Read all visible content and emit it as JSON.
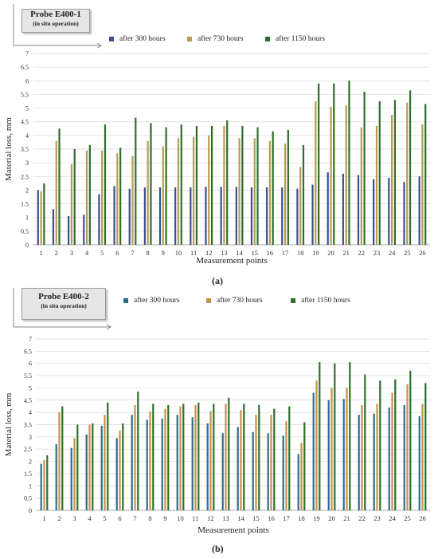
{
  "chart_data": [
    {
      "type": "bar",
      "panel_label": "(a)",
      "probe_title": "Probe E400-1",
      "probe_subtitle": "(in situ operation)",
      "xlabel": "Measurement points",
      "ylabel": "Material loss, mm",
      "ylim": [
        0,
        7
      ],
      "yticks": [
        "0",
        "0.5",
        "1",
        "1.5",
        "2",
        "2.5",
        "3",
        "3.5",
        "4",
        "4.5",
        "5",
        "5.5",
        "6",
        "6.5",
        "7"
      ],
      "categories": [
        "1",
        "2",
        "3",
        "4",
        "5",
        "6",
        "7",
        "8",
        "9",
        "10",
        "11",
        "12",
        "13",
        "14",
        "15",
        "16",
        "17",
        "18",
        "19",
        "20",
        "21",
        "22",
        "23",
        "24",
        "25",
        "26"
      ],
      "legend_position": "top",
      "series": [
        {
          "name": "after 300 hours",
          "color": "#3a4f8f",
          "values": [
            2.0,
            1.3,
            1.05,
            1.1,
            1.85,
            2.15,
            2.05,
            2.1,
            2.1,
            2.1,
            2.1,
            2.12,
            2.12,
            2.12,
            2.1,
            2.1,
            2.1,
            2.05,
            2.2,
            2.65,
            2.6,
            2.55,
            2.4,
            2.45,
            2.3,
            2.5
          ]
        },
        {
          "name": "after 730 hours",
          "color": "#b89a55",
          "values": [
            1.95,
            3.8,
            2.95,
            3.45,
            3.45,
            3.35,
            3.25,
            3.8,
            3.6,
            3.9,
            3.95,
            4.0,
            4.35,
            3.9,
            3.9,
            3.8,
            3.7,
            2.85,
            5.25,
            5.05,
            5.1,
            4.3,
            4.35,
            4.75,
            5.2,
            4.4
          ]
        },
        {
          "name": "after 1150 hours",
          "color": "#2e6e2a",
          "values": [
            2.25,
            4.25,
            3.5,
            3.65,
            4.4,
            3.55,
            4.65,
            4.45,
            4.3,
            4.4,
            4.35,
            4.35,
            4.55,
            4.35,
            4.3,
            4.15,
            4.2,
            3.65,
            5.9,
            5.9,
            6.0,
            5.6,
            5.25,
            5.3,
            5.65,
            5.15
          ]
        }
      ]
    },
    {
      "type": "bar",
      "panel_label": "(b)",
      "probe_title": "Probe E400-2",
      "probe_subtitle": "(in situ operation)",
      "xlabel": "Measurement points",
      "ylabel": "Material loss, mm",
      "ylim": [
        0,
        7
      ],
      "yticks": [
        "0",
        "0.5",
        "1",
        "1.5",
        "2",
        "2.5",
        "3",
        "3.5",
        "4",
        "4.5",
        "5",
        "5.5",
        "6",
        "6.5",
        "7"
      ],
      "categories": [
        "1",
        "2",
        "3",
        "4",
        "5",
        "6",
        "7",
        "8",
        "9",
        "10",
        "11",
        "12",
        "13",
        "14",
        "15",
        "16",
        "17",
        "18",
        "19",
        "20",
        "21",
        "22",
        "23",
        "24",
        "25",
        "26"
      ],
      "legend_position": "top",
      "series": [
        {
          "name": "after 300 hours",
          "color": "#2e6a8e",
          "values": [
            1.9,
            2.7,
            2.55,
            3.1,
            3.45,
            2.95,
            3.9,
            3.7,
            3.75,
            3.9,
            3.8,
            3.55,
            3.15,
            3.4,
            3.2,
            3.15,
            3.05,
            2.3,
            4.8,
            4.5,
            4.55,
            3.9,
            3.95,
            4.2,
            4.3,
            3.85
          ]
        },
        {
          "name": "after 730 hours",
          "color": "#c8914a",
          "values": [
            2.05,
            4.0,
            2.95,
            3.5,
            3.9,
            3.25,
            4.3,
            4.05,
            4.15,
            4.25,
            4.3,
            4.05,
            4.35,
            4.1,
            3.9,
            3.9,
            3.65,
            2.75,
            5.3,
            5.0,
            5.0,
            4.3,
            4.35,
            4.8,
            5.15,
            4.35
          ]
        },
        {
          "name": "after 1150 hours",
          "color": "#2f6f2b",
          "values": [
            2.25,
            4.25,
            3.5,
            3.55,
            4.4,
            3.55,
            4.85,
            4.35,
            4.3,
            4.35,
            4.4,
            4.35,
            4.6,
            4.35,
            4.3,
            4.15,
            4.25,
            3.6,
            6.05,
            6.0,
            6.05,
            5.55,
            5.3,
            5.35,
            5.7,
            5.2
          ]
        }
      ]
    }
  ]
}
